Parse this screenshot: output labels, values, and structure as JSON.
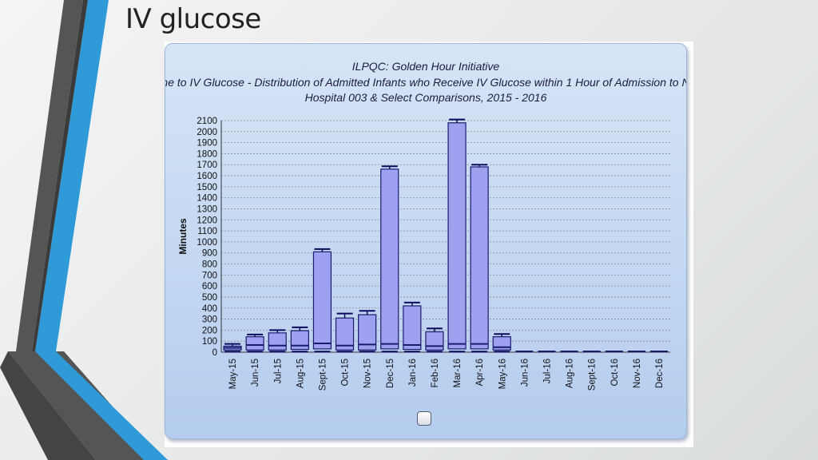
{
  "slide": {
    "title": "IV glucose"
  },
  "chart_data": {
    "type": "bar",
    "title": "ILPQC: Golden Hour Initiative",
    "subtitle": "Time to IV Glucose - Distribution of Admitted Infants who Receive IV Glucose within 1 Hour of Admission to NICU/Special Care Nursery",
    "caption": "Hospital 003 & Select Comparisons, 2015 - 2016",
    "ylabel": "Minutes",
    "xlabel": "",
    "ylim": [
      0,
      2100
    ],
    "yticks": [
      0,
      100,
      200,
      300,
      400,
      500,
      600,
      700,
      800,
      900,
      1000,
      1100,
      1200,
      1300,
      1400,
      1500,
      1600,
      1700,
      1800,
      1900,
      2000,
      2100
    ],
    "grid": true,
    "categories": [
      "May-15",
      "Jun-15",
      "Jul-15",
      "Aug-15",
      "Sept-15",
      "Oct-15",
      "Nov-15",
      "Dec-15",
      "Jan-16",
      "Feb-16",
      "Mar-16",
      "Apr-16",
      "May-16",
      "Jun-16",
      "Jul-16",
      "Aug-16",
      "Sept-16",
      "Oct-16",
      "Nov-16",
      "Dec-16"
    ],
    "series": [
      {
        "values": [
          55,
          140,
          175,
          195,
          910,
          310,
          340,
          1660,
          420,
          185,
          2080,
          1680,
          140,
          0,
          0,
          0,
          0,
          0,
          0,
          0
        ]
      }
    ],
    "q1": [
      20,
      20,
      20,
      25,
      30,
      20,
      20,
      30,
      25,
      20,
      30,
      30,
      20,
      0,
      0,
      0,
      0,
      0,
      0,
      0
    ],
    "median": [
      40,
      65,
      60,
      60,
      80,
      60,
      70,
      75,
      65,
      55,
      75,
      75,
      45,
      0,
      0,
      0,
      0,
      0,
      0,
      0
    ],
    "whisker_high": [
      75,
      160,
      200,
      225,
      935,
      350,
      375,
      1685,
      450,
      215,
      2110,
      1700,
      165,
      0,
      0,
      0,
      0,
      0,
      0,
      0
    ],
    "whisker_low": [
      5,
      5,
      5,
      5,
      5,
      5,
      5,
      5,
      5,
      5,
      5,
      5,
      5,
      0,
      0,
      0,
      0,
      0,
      0,
      0
    ],
    "colors": {
      "bar": "#a0a0f0",
      "bar_stroke": "#1a1a6e",
      "whisker": "#0a0a60",
      "grid": "#8c8c8c"
    }
  }
}
